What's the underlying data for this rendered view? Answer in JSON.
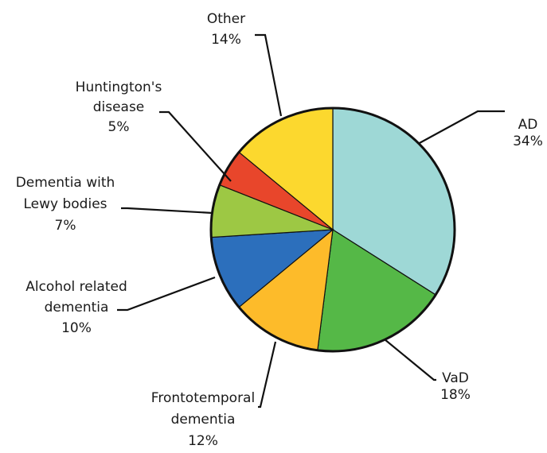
{
  "chart_data": {
    "type": "pie",
    "title": "",
    "start_angle_deg": 0,
    "direction": "clockwise",
    "slices": [
      {
        "name": "AD",
        "label_lines": [
          "AD",
          "34%"
        ],
        "value": 34,
        "color": "#9ed8d6"
      },
      {
        "name": "VaD",
        "label_lines": [
          "VaD",
          "18%"
        ],
        "value": 18,
        "color": "#55b847"
      },
      {
        "name": "Frontotemporal dementia",
        "label_lines": [
          "Frontotemporal",
          "dementia",
          "12%"
        ],
        "value": 12,
        "color": "#fdbb2a"
      },
      {
        "name": "Alcohol related dementia",
        "label_lines": [
          "Alcohol related",
          "dementia",
          "10%"
        ],
        "value": 10,
        "color": "#2c6fbc"
      },
      {
        "name": "Dementia with Lewy bodies",
        "label_lines": [
          "Dementia with",
          "Lewy bodies",
          "7%"
        ],
        "value": 7,
        "color": "#9dc844"
      },
      {
        "name": "Huntington's disease",
        "label_lines": [
          "Huntington's",
          "disease",
          "5%"
        ],
        "value": 5,
        "color": "#e8462b"
      },
      {
        "name": "Other",
        "label_lines": [
          "Other",
          "14%"
        ],
        "value": 14,
        "color": "#fcd82e"
      }
    ]
  }
}
